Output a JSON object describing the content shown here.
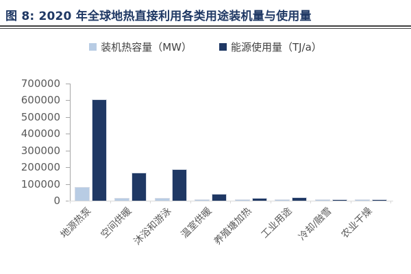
{
  "header": {
    "title": "图 8: 2020 年全球地热直接利用各类用途装机量与使用量"
  },
  "legend": [
    {
      "label": "装机热容量（MW）",
      "color": "#b8cce4"
    },
    {
      "label": "能源使用量（TJ/a）",
      "color": "#1f3864"
    }
  ],
  "colors": {
    "title": "#1f3864",
    "divider": "#3f3f3f",
    "axis_line": "#a6a6a6",
    "baseline": "#d9d9d9",
    "tick_text": "#595959",
    "series_light": "#b8cce4",
    "series_dark": "#1f3864"
  },
  "chart_data": {
    "type": "bar",
    "title": "2020 年全球地热直接利用各类用途装机量与使用量",
    "categories": [
      "地源热泵",
      "空间供暖",
      "沐浴和游泳",
      "温室供暖",
      "养殖塘加热",
      "工业用途",
      "冷却/融雪",
      "农业干燥"
    ],
    "series": [
      {
        "name": "装机热容量（MW）",
        "color": "#b8cce4",
        "values": [
          77547,
          12768,
          12253,
          2459,
          950,
          852,
          435,
          257
        ]
      },
      {
        "name": "能源使用量（TJ/a）",
        "color": "#1f3864",
        "values": [
          599981,
          162979,
          184070,
          35826,
          13573,
          16573,
          2589,
          3529
        ]
      }
    ],
    "xlabel": "",
    "ylabel": "",
    "ylim": [
      0,
      700000
    ],
    "yticks": [
      0,
      100000,
      200000,
      300000,
      400000,
      500000,
      600000,
      700000
    ],
    "grid": false,
    "legend_position": "top-center",
    "x_tick_label_rotation_deg": -45
  }
}
